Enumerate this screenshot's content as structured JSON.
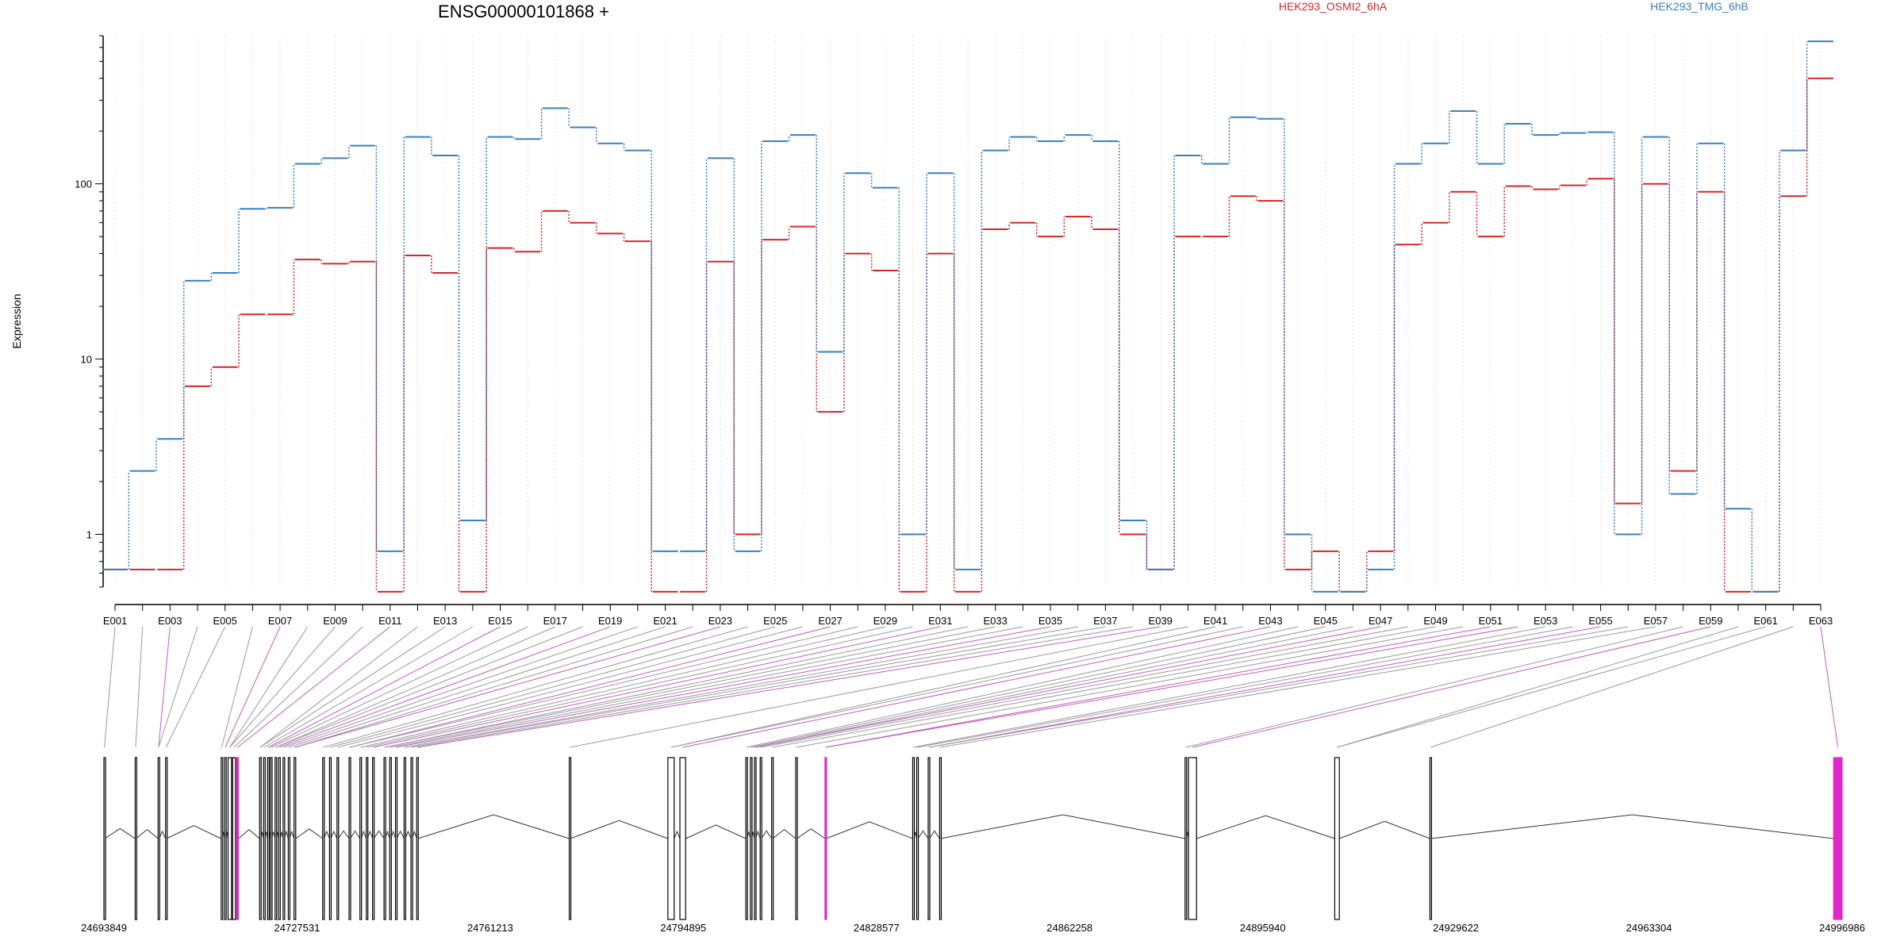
{
  "chart_data": {
    "type": "line",
    "title": "ENSG00000101868 +",
    "ylabel": "Expression",
    "xlabel": "",
    "yscale": "log",
    "ylim": [
      0.5,
      700
    ],
    "yticks": [
      1,
      10,
      100
    ],
    "ytick_labels": [
      "1",
      "10",
      "100"
    ],
    "grid": "vertical dotted lines at each exon",
    "legend_position": "top",
    "categories": [
      "E001",
      "E002",
      "E003",
      "E004",
      "E005",
      "E006",
      "E007",
      "E008",
      "E009",
      "E010",
      "E011",
      "E012",
      "E013",
      "E014",
      "E015",
      "E016",
      "E017",
      "E018",
      "E019",
      "E020",
      "E021",
      "E022",
      "E023",
      "E024",
      "E025",
      "E026",
      "E027",
      "E028",
      "E029",
      "E030",
      "E031",
      "E032",
      "E033",
      "E034",
      "E035",
      "E036",
      "E037",
      "E038",
      "E039",
      "E040",
      "E041",
      "E042",
      "E043",
      "E044",
      "E045",
      "E046",
      "E047",
      "E048",
      "E049",
      "E050",
      "E051",
      "E052",
      "E053",
      "E054",
      "E055",
      "E056",
      "E057",
      "E058",
      "E059",
      "E060",
      "E061",
      "E062",
      "E063"
    ],
    "xtick_labels": [
      "E001",
      "E003",
      "E005",
      "E007",
      "E009",
      "E011",
      "E013",
      "E015",
      "E017",
      "E019",
      "E021",
      "E023",
      "E025",
      "E027",
      "E029",
      "E031",
      "E033",
      "E035",
      "E037",
      "E039",
      "E041",
      "E043",
      "E045",
      "E047",
      "E049",
      "E051",
      "E053",
      "E055",
      "E057",
      "E059",
      "E061",
      "E063"
    ],
    "series": [
      {
        "name": "HEK293_OSMI2_6hA",
        "color": "#d62728",
        "values": [
          0.63,
          0.63,
          0.63,
          7,
          9,
          18,
          18,
          37,
          35,
          36,
          0.47,
          39,
          31,
          0.47,
          43,
          41,
          70,
          60,
          52,
          47,
          0.47,
          0.47,
          36,
          1.0,
          48,
          57,
          5,
          40,
          32,
          0.47,
          40,
          0.47,
          55,
          60,
          50,
          65,
          55,
          1.0,
          0.63,
          50,
          50,
          85,
          80,
          0.63,
          0.8,
          0.47,
          0.8,
          45,
          60,
          90,
          50,
          97,
          93,
          98,
          107,
          1.5,
          100,
          2.3,
          90,
          0.47,
          0.47,
          85,
          400
        ]
      },
      {
        "name": "HEK293_TMG_6hB",
        "color": "#3a7fc1",
        "values": [
          0.63,
          2.3,
          3.5,
          28,
          31,
          72,
          73,
          130,
          140,
          165,
          0.8,
          185,
          145,
          1.2,
          185,
          180,
          270,
          210,
          170,
          155,
          0.8,
          0.8,
          140,
          0.8,
          175,
          190,
          11,
          115,
          95,
          1.0,
          115,
          0.63,
          155,
          185,
          175,
          190,
          175,
          1.2,
          0.63,
          145,
          130,
          240,
          235,
          1.0,
          0.47,
          0.47,
          0.63,
          130,
          170,
          260,
          130,
          220,
          190,
          195,
          197,
          1.0,
          185,
          1.7,
          170,
          1.4,
          0.47,
          155,
          650
        ]
      }
    ]
  },
  "gene_model": {
    "coordinate_labels": [
      "24693849",
      "24727531",
      "24761213",
      "24794895",
      "24828577",
      "24862258",
      "24895940",
      "24929622",
      "24963304",
      "24996986"
    ],
    "highlight_color": "#e028c8",
    "exons": [
      {
        "start": 24693850,
        "end": 24694000,
        "highlight": false
      },
      {
        "start": 24699300,
        "end": 24699450,
        "highlight": false
      },
      {
        "start": 24703300,
        "end": 24703450,
        "highlight": false
      },
      {
        "start": 24704600,
        "end": 24704750,
        "highlight": false
      },
      {
        "start": 24714300,
        "end": 24714450,
        "highlight": false
      },
      {
        "start": 24714900,
        "end": 24715100,
        "highlight": false
      },
      {
        "start": 24715500,
        "end": 24716100,
        "highlight": false
      },
      {
        "start": 24716300,
        "end": 24716800,
        "highlight": false
      },
      {
        "start": 24717000,
        "end": 24717300,
        "highlight": true
      },
      {
        "start": 24721000,
        "end": 24721200,
        "highlight": false
      },
      {
        "start": 24721700,
        "end": 24721900,
        "highlight": false
      },
      {
        "start": 24722400,
        "end": 24722600,
        "highlight": false
      },
      {
        "start": 24722900,
        "end": 24723100,
        "highlight": false
      },
      {
        "start": 24723700,
        "end": 24723900,
        "highlight": false
      },
      {
        "start": 24724300,
        "end": 24724600,
        "highlight": false
      },
      {
        "start": 24725100,
        "end": 24725300,
        "highlight": false
      },
      {
        "start": 24726000,
        "end": 24726200,
        "highlight": false
      },
      {
        "start": 24727000,
        "end": 24727300,
        "highlight": false
      },
      {
        "start": 24732000,
        "end": 24732200,
        "highlight": false
      },
      {
        "start": 24733200,
        "end": 24733400,
        "highlight": false
      },
      {
        "start": 24734500,
        "end": 24734700,
        "highlight": false
      },
      {
        "start": 24736600,
        "end": 24736800,
        "highlight": false
      },
      {
        "start": 24738500,
        "end": 24738700,
        "highlight": false
      },
      {
        "start": 24739600,
        "end": 24739800,
        "highlight": false
      },
      {
        "start": 24740700,
        "end": 24740900,
        "highlight": false
      },
      {
        "start": 24742700,
        "end": 24742900,
        "highlight": false
      },
      {
        "start": 24743700,
        "end": 24743900,
        "highlight": false
      },
      {
        "start": 24744700,
        "end": 24744900,
        "highlight": false
      },
      {
        "start": 24746200,
        "end": 24746400,
        "highlight": false
      },
      {
        "start": 24747400,
        "end": 24747600,
        "highlight": false
      },
      {
        "start": 24748400,
        "end": 24748600,
        "highlight": false
      },
      {
        "start": 24775000,
        "end": 24775200,
        "highlight": false
      },
      {
        "start": 24792200,
        "end": 24793300,
        "highlight": false
      },
      {
        "start": 24794300,
        "end": 24795300,
        "highlight": false
      },
      {
        "start": 24805800,
        "end": 24806000,
        "highlight": false
      },
      {
        "start": 24806600,
        "end": 24806800,
        "highlight": false
      },
      {
        "start": 24807300,
        "end": 24807500,
        "highlight": false
      },
      {
        "start": 24808300,
        "end": 24808500,
        "highlight": false
      },
      {
        "start": 24810300,
        "end": 24810500,
        "highlight": false
      },
      {
        "start": 24814500,
        "end": 24814700,
        "highlight": false
      },
      {
        "start": 24819600,
        "end": 24819800,
        "highlight": true
      },
      {
        "start": 24834900,
        "end": 24835100,
        "highlight": false
      },
      {
        "start": 24835600,
        "end": 24835800,
        "highlight": false
      },
      {
        "start": 24837600,
        "end": 24837800,
        "highlight": false
      },
      {
        "start": 24839600,
        "end": 24839800,
        "highlight": false
      },
      {
        "start": 24882400,
        "end": 24882600,
        "highlight": false
      },
      {
        "start": 24883000,
        "end": 24884400,
        "highlight": false
      },
      {
        "start": 24908500,
        "end": 24909300,
        "highlight": false
      },
      {
        "start": 24925100,
        "end": 24925300,
        "highlight": false
      },
      {
        "start": 24995500,
        "end": 24996986,
        "highlight": true
      }
    ]
  }
}
